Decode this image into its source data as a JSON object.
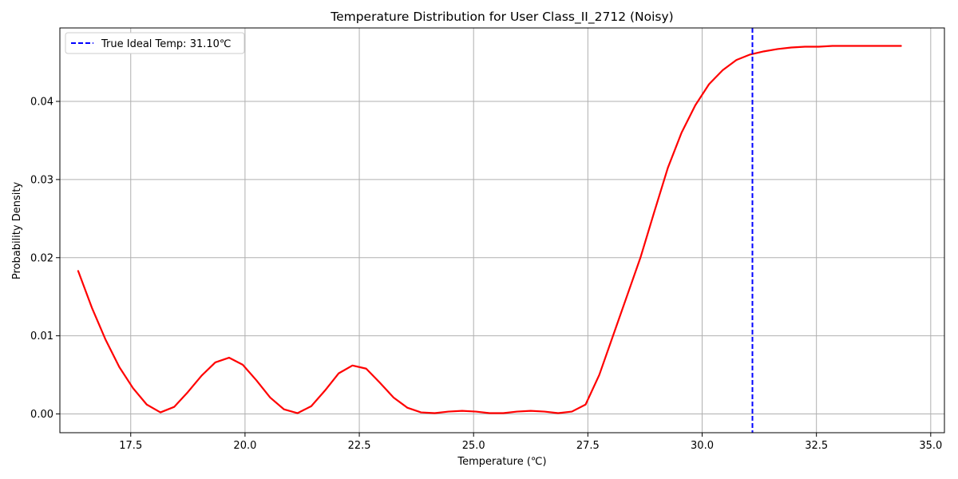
{
  "chart_data": {
    "type": "line",
    "title": "Temperature Distribution for User Class_II_2712 (Noisy)",
    "xlabel": "Temperature (℃)",
    "ylabel": "Probability Density",
    "xlim": [
      15.95,
      35.3
    ],
    "ylim": [
      -0.0024,
      0.0494
    ],
    "x_ticks": [
      17.5,
      20.0,
      22.5,
      25.0,
      27.5,
      30.0,
      32.5,
      35.0
    ],
    "x_tick_labels": [
      "17.5",
      "20.0",
      "22.5",
      "25.0",
      "27.5",
      "30.0",
      "32.5",
      "35.0"
    ],
    "y_ticks": [
      0.0,
      0.01,
      0.02,
      0.03,
      0.04
    ],
    "y_tick_labels": [
      "0.00",
      "0.01",
      "0.02",
      "0.03",
      "0.04"
    ],
    "grid": true,
    "legend_position": "top-left",
    "series": [
      {
        "name": "",
        "color": "#ff0000",
        "x": [
          16.35,
          16.65,
          16.95,
          17.25,
          17.55,
          17.85,
          18.15,
          18.45,
          18.75,
          19.05,
          19.35,
          19.65,
          19.95,
          20.25,
          20.55,
          20.85,
          21.15,
          21.45,
          21.75,
          22.05,
          22.35,
          22.65,
          22.95,
          23.25,
          23.55,
          23.85,
          24.15,
          24.45,
          24.75,
          25.05,
          25.35,
          25.65,
          25.95,
          26.25,
          26.55,
          26.85,
          27.15,
          27.45,
          27.75,
          28.05,
          28.35,
          28.65,
          28.95,
          29.25,
          29.55,
          29.85,
          30.15,
          30.45,
          30.75,
          31.05,
          31.35,
          31.65,
          31.95,
          32.25,
          32.55,
          32.85,
          33.15,
          33.45,
          33.75,
          34.05,
          34.35
        ],
        "y": [
          0.0183,
          0.0136,
          0.0095,
          0.006,
          0.0033,
          0.0012,
          0.0002,
          0.0009,
          0.0028,
          0.0049,
          0.0066,
          0.0072,
          0.0063,
          0.0043,
          0.0021,
          0.0006,
          0.0001,
          0.001,
          0.003,
          0.0052,
          0.0062,
          0.0058,
          0.004,
          0.0021,
          0.0008,
          0.0002,
          0.0001,
          0.0003,
          0.0004,
          0.0003,
          0.0001,
          0.0001,
          0.0003,
          0.0004,
          0.0003,
          0.0001,
          0.0003,
          0.0012,
          0.005,
          0.01,
          0.015,
          0.02,
          0.0258,
          0.0315,
          0.036,
          0.0395,
          0.0422,
          0.044,
          0.0453,
          0.046,
          0.0464,
          0.0467,
          0.0469,
          0.047,
          0.047,
          0.0471,
          0.0471,
          0.0471,
          0.0471,
          0.0471,
          0.0471
        ]
      }
    ],
    "annotations": [
      {
        "type": "vline",
        "x": 31.1,
        "label": "True Ideal Temp: 31.10℃",
        "color": "#0000ff",
        "style": "dashed"
      }
    ]
  }
}
